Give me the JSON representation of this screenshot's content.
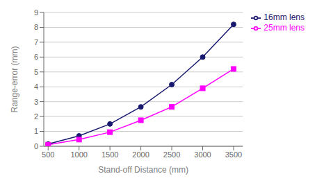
{
  "chart_data": {
    "type": "line",
    "x": [
      500,
      1000,
      1500,
      2000,
      2500,
      3000,
      3500
    ],
    "series": [
      {
        "name": "16mm lens",
        "color": "#191970",
        "marker": "circle",
        "values": [
          0.15,
          0.7,
          1.5,
          2.65,
          4.15,
          6.0,
          8.2
        ]
      },
      {
        "name": "25mm lens",
        "color": "#FF00FF",
        "marker": "square",
        "values": [
          0.1,
          0.45,
          0.95,
          1.75,
          2.65,
          3.9,
          5.2
        ]
      }
    ],
    "xlabel": "Stand-off Distance (mm)",
    "ylabel": "Range-error (mm)",
    "xlim": [
      430,
      3650
    ],
    "ylim": [
      0,
      9
    ],
    "xticks": [
      500,
      1000,
      1500,
      2000,
      2500,
      3000,
      3500
    ],
    "yticks": [
      0,
      1,
      2,
      3,
      4,
      5,
      6,
      7,
      8,
      9
    ],
    "grid": true,
    "legend": "right"
  }
}
